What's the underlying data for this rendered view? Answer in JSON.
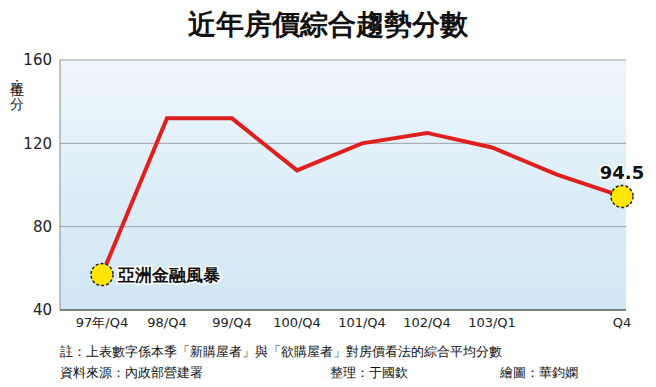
{
  "chart_data": {
    "type": "line",
    "title": "近年房價綜合趨勢分數",
    "y_label": "單位：分",
    "categories": [
      "97年/Q4",
      "98/Q4",
      "99/Q4",
      "100/Q4",
      "101/Q4",
      "102/Q4",
      "103/Q1",
      null,
      "Q4"
    ],
    "values": [
      57,
      132,
      132,
      107,
      120,
      125,
      118,
      105,
      94.5
    ],
    "color": "#e02020",
    "ylim": [
      40,
      160
    ],
    "yticks": [
      40,
      80,
      120,
      160
    ],
    "grid": true,
    "annotations": [
      {
        "category": "97年/Q4",
        "text": "亞洲金融風暴"
      },
      {
        "category": "Q4",
        "text": "94.5"
      }
    ],
    "notes": [
      "註：上表數字係本季「新購屋者」與「欲購屋者」對房價看法的綜合平均分數",
      "資料來源：內政部營建署",
      "整理：于國欽",
      "繪圖：華鈞嫻"
    ]
  }
}
